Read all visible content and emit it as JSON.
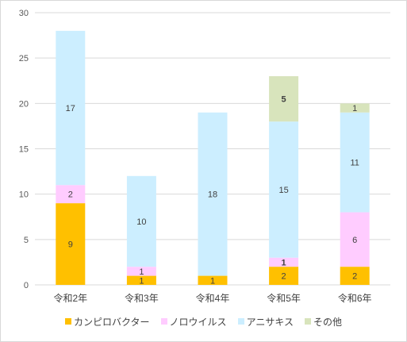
{
  "chart_data": {
    "type": "bar",
    "stacked": true,
    "categories": [
      "令和2年",
      "令和3年",
      "令和4年",
      "令和5年",
      "令和6年"
    ],
    "series": [
      {
        "name": "カンピロバクター",
        "color": "#ffc000",
        "values": [
          9,
          1,
          1,
          2,
          2
        ]
      },
      {
        "name": "ノロウイルス",
        "color": "#ffccff",
        "values": [
          2,
          1,
          0,
          1,
          6
        ]
      },
      {
        "name": "アニサキス",
        "color": "#cceeff",
        "values": [
          17,
          10,
          18,
          15,
          11
        ]
      },
      {
        "name": "その他",
        "color": "#d8e4bc",
        "values": [
          0,
          0,
          0,
          5,
          1
        ]
      }
    ],
    "ylim": [
      0,
      30
    ],
    "yticks": [
      0,
      5,
      10,
      15,
      20,
      25,
      30
    ],
    "grid": true,
    "legend_position": "bottom",
    "title": "",
    "xlabel": "",
    "ylabel": ""
  }
}
